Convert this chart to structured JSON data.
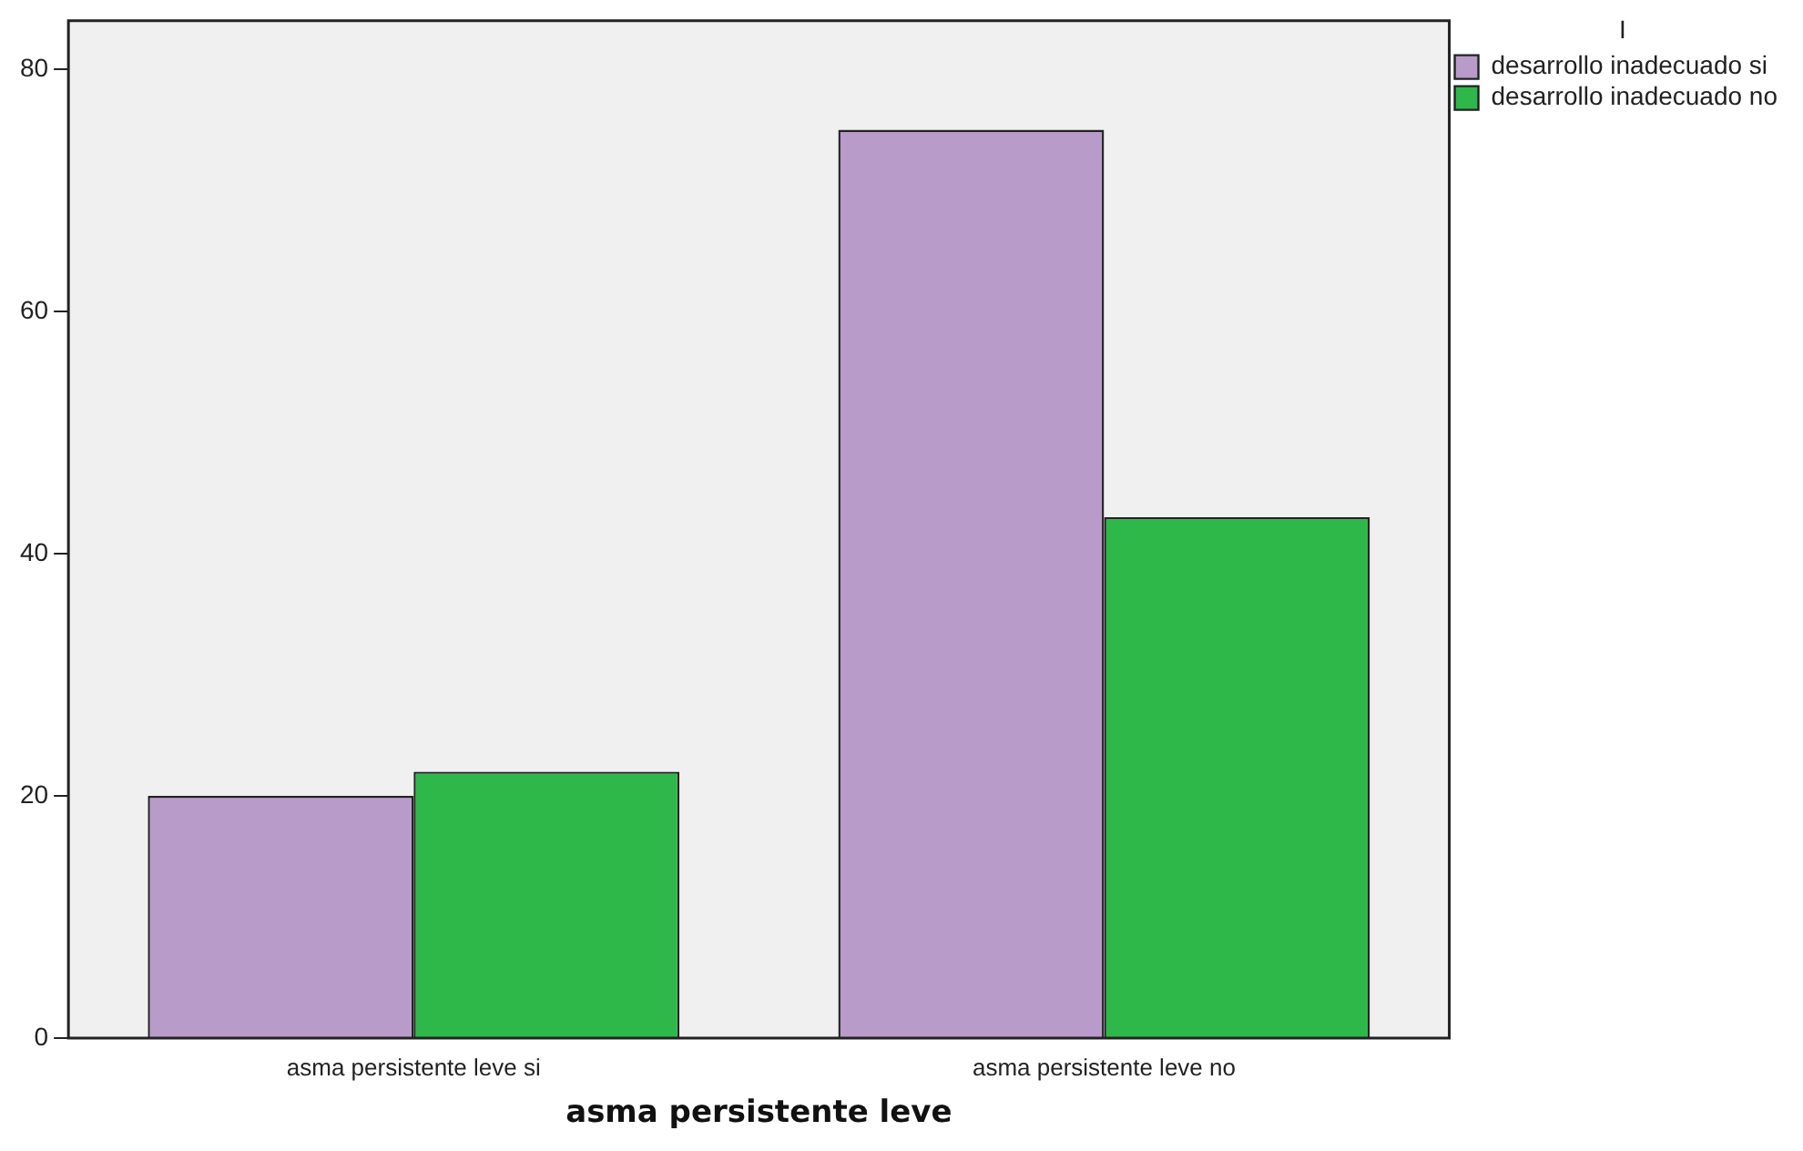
{
  "chart_data": {
    "type": "bar",
    "categories": [
      "asma persistente leve si",
      "asma persistente leve no"
    ],
    "series": [
      {
        "name": "desarrollo inadecuado si",
        "color": "#b89bc9",
        "values": [
          20,
          75
        ]
      },
      {
        "name": "desarrollo inadecuado no",
        "color": "#2eb84a",
        "values": [
          22,
          43
        ]
      }
    ],
    "xlabel": "asma persistente leve",
    "legend_title": "I",
    "legend": "top right",
    "ylim": [
      0,
      84
    ],
    "yticks": [
      0,
      20,
      40,
      60,
      80
    ],
    "grid": false
  }
}
